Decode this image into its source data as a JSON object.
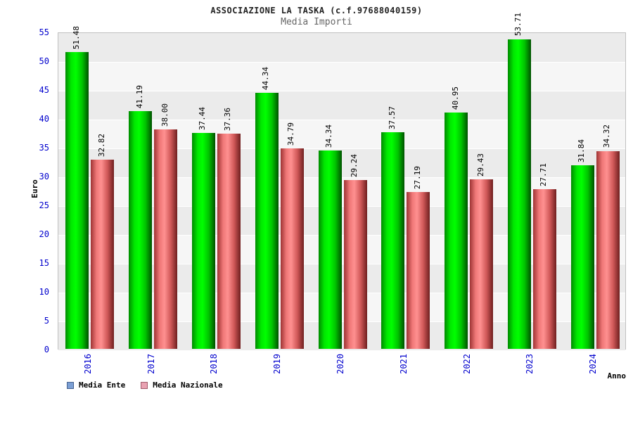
{
  "title": "ASSOCIAZIONE LA TASKA (c.f.97688040159)",
  "subtitle": "Media Importi",
  "chart_data": {
    "type": "bar",
    "title": "ASSOCIAZIONE LA TASKA (c.f.97688040159)",
    "subtitle": "Media Importi",
    "xlabel": "Anno",
    "ylabel": "Euro",
    "ylim": [
      0,
      55
    ],
    "ytick_step": 5,
    "grid": true,
    "legend_position": "bottom",
    "categories": [
      "2016",
      "2017",
      "2018",
      "2019",
      "2020",
      "2021",
      "2022",
      "2023",
      "2024"
    ],
    "series": [
      {
        "name": "Media Ente",
        "values": [
          51.48,
          41.19,
          37.44,
          44.34,
          34.34,
          37.57,
          40.95,
          53.71,
          31.84
        ],
        "swatch_fill": "#7b9fd4",
        "swatch_border": "#44608e",
        "bar_gradient": [
          "#008a00",
          "#00e800",
          "#00ff00",
          "#00c400",
          "#005200"
        ]
      },
      {
        "name": "Media Nazionale",
        "values": [
          32.82,
          38.0,
          37.36,
          34.79,
          29.24,
          27.19,
          29.43,
          27.71,
          34.32
        ],
        "swatch_fill": "#e9a2b2",
        "swatch_border": "#a05a6a",
        "bar_gradient": [
          "#9e3434",
          "#f07878",
          "#ff9090",
          "#d05858",
          "#6f1f1f"
        ]
      }
    ]
  },
  "colors": {
    "band_dark": "#ebebeb",
    "band_light": "#f6f6f6",
    "gridline": "#ffffff",
    "axis_text": "#0000cd",
    "plot_border": "#c0c0c0"
  },
  "axis": {
    "x_title": "Anno",
    "y_title": "Euro"
  }
}
